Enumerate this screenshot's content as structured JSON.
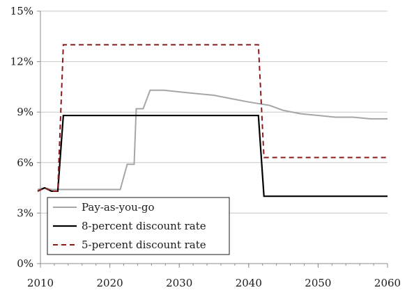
{
  "chart_data": {
    "type": "line",
    "title": "",
    "xlabel": "",
    "ylabel": "",
    "xlim": [
      2010,
      2060
    ],
    "ylim": [
      0,
      15
    ],
    "x_ticks": [
      2010,
      2020,
      2030,
      2040,
      2050,
      2060
    ],
    "x_tick_labels": [
      "2010",
      "2020",
      "2030",
      "2040",
      "2050",
      "2060"
    ],
    "y_ticks": [
      0,
      3,
      6,
      9,
      12,
      15
    ],
    "y_tick_labels": [
      "0%",
      "3%",
      "6%",
      "9%",
      "12%",
      "15%"
    ],
    "grid": "horizontal",
    "legend_position": "bottom-left",
    "series": [
      {
        "name": "Pay-as-you-go",
        "color": "#a6a6a6",
        "dash": "solid",
        "x": [
          2009.6,
          2010.6,
          2011.6,
          2012.5,
          2013.6,
          2021.5,
          2022.5,
          2023.5,
          2023.8,
          2024.8,
          2025.8,
          2027.8,
          2030,
          2032.5,
          2035,
          2037.5,
          2040,
          2043,
          2045,
          2047.5,
          2050,
          2052.5,
          2055,
          2057.5,
          2060
        ],
        "y": [
          4.4,
          4.5,
          4.4,
          4.4,
          4.4,
          4.4,
          5.9,
          5.9,
          9.2,
          9.2,
          10.3,
          10.3,
          10.2,
          10.1,
          10.0,
          9.8,
          9.6,
          9.4,
          9.1,
          8.9,
          8.8,
          8.7,
          8.7,
          8.6,
          8.6
        ]
      },
      {
        "name": "8-percent discount rate",
        "color": "#000000",
        "dash": "solid",
        "x": [
          2009.6,
          2010.6,
          2011.6,
          2012.5,
          2013.3,
          2041.4,
          2042.2,
          2060
        ],
        "y": [
          4.3,
          4.5,
          4.3,
          4.3,
          8.8,
          8.8,
          4.0,
          4.0
        ],
        "values": [
          4.3,
          4.5,
          4.3,
          4.3,
          8.8,
          8.8,
          4.0,
          4.0
        ]
      },
      {
        "name": "5-percent discount rate",
        "color": "#8b1a1a",
        "dash": "dashed",
        "x": [
          2009.6,
          2010.6,
          2011.6,
          2012.5,
          2013.3,
          2041.4,
          2042.2,
          2060
        ],
        "y": [
          4.3,
          4.5,
          4.3,
          4.3,
          13.0,
          13.0,
          6.3,
          6.3
        ]
      }
    ]
  }
}
